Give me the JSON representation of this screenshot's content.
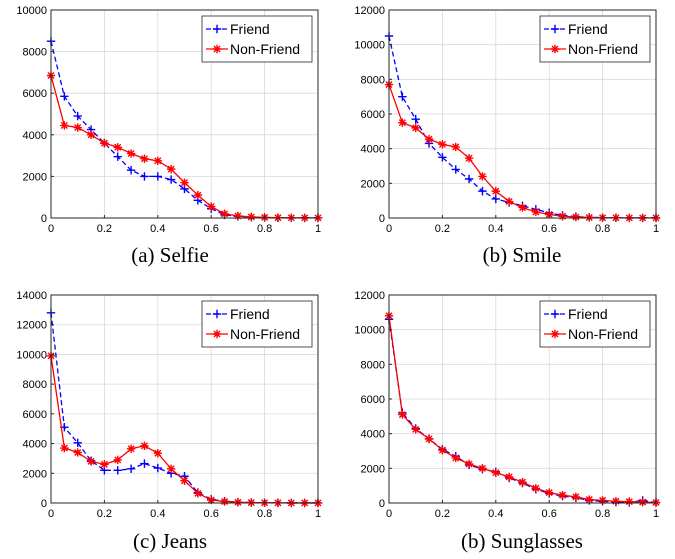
{
  "chart_data": [
    {
      "type": "line",
      "caption": "(a) Selfie",
      "xlim": [
        0,
        1
      ],
      "ylim": [
        0,
        10000
      ],
      "xticks": [
        0,
        0.2,
        0.4,
        0.6,
        0.8,
        1
      ],
      "xtick_labels": [
        "0",
        "0.2",
        "0.4",
        "0.6",
        "0.8",
        "1"
      ],
      "yticks": [
        0,
        2000,
        4000,
        6000,
        8000,
        10000
      ],
      "ytick_labels": [
        "0",
        "2000",
        "4000",
        "6000",
        "8000",
        "10000"
      ],
      "x": [
        0,
        0.05,
        0.1,
        0.15,
        0.2,
        0.25,
        0.3,
        0.35,
        0.4,
        0.45,
        0.5,
        0.55,
        0.6,
        0.65,
        0.7,
        0.75,
        0.8,
        0.85,
        0.9,
        0.95,
        1
      ],
      "legend_position": "top-right",
      "series": [
        {
          "name": "Friend",
          "color": "#0000ff",
          "line": "dashed",
          "marker": "plus",
          "values": [
            8500,
            5850,
            4900,
            4250,
            3600,
            2950,
            2300,
            2000,
            2000,
            1850,
            1400,
            850,
            450,
            150,
            80,
            40,
            20,
            10,
            5,
            5,
            5
          ]
        },
        {
          "name": "Non-Friend",
          "color": "#ff0000",
          "line": "solid",
          "marker": "asterisk",
          "values": [
            6850,
            4450,
            4350,
            4000,
            3600,
            3400,
            3100,
            2850,
            2750,
            2350,
            1700,
            1100,
            550,
            200,
            100,
            50,
            30,
            15,
            10,
            5,
            5
          ]
        }
      ]
    },
    {
      "type": "line",
      "caption": "(b) Smile",
      "xlim": [
        0,
        1
      ],
      "ylim": [
        0,
        12000
      ],
      "xticks": [
        0,
        0.2,
        0.4,
        0.6,
        0.8,
        1
      ],
      "xtick_labels": [
        "0",
        "0.2",
        "0.4",
        "0.6",
        "0.8",
        "1"
      ],
      "yticks": [
        0,
        2000,
        4000,
        6000,
        8000,
        10000,
        12000
      ],
      "ytick_labels": [
        "0",
        "2000",
        "4000",
        "6000",
        "8000",
        "10000",
        "12000"
      ],
      "x": [
        0,
        0.05,
        0.1,
        0.15,
        0.2,
        0.25,
        0.3,
        0.35,
        0.4,
        0.45,
        0.5,
        0.55,
        0.6,
        0.65,
        0.7,
        0.75,
        0.8,
        0.85,
        0.9,
        0.95,
        1
      ],
      "legend_position": "top-right",
      "series": [
        {
          "name": "Friend",
          "color": "#0000ff",
          "line": "dashed",
          "marker": "plus",
          "values": [
            10500,
            7000,
            5700,
            4300,
            3500,
            2800,
            2250,
            1550,
            1100,
            900,
            700,
            500,
            300,
            150,
            80,
            40,
            20,
            10,
            5,
            5,
            5
          ]
        },
        {
          "name": "Non-Friend",
          "color": "#ff0000",
          "line": "solid",
          "marker": "asterisk",
          "values": [
            7700,
            5500,
            5200,
            4550,
            4250,
            4100,
            3450,
            2400,
            1550,
            950,
            600,
            350,
            200,
            100,
            60,
            30,
            15,
            10,
            5,
            5,
            5
          ]
        }
      ]
    },
    {
      "type": "line",
      "caption": "(c) Jeans",
      "xlim": [
        0,
        1
      ],
      "ylim": [
        0,
        14000
      ],
      "xticks": [
        0,
        0.2,
        0.4,
        0.6,
        0.8,
        1
      ],
      "xtick_labels": [
        "0",
        "0.2",
        "0.4",
        "0.6",
        "0.8",
        "1"
      ],
      "yticks": [
        0,
        2000,
        4000,
        6000,
        8000,
        10000,
        12000,
        14000
      ],
      "ytick_labels": [
        "0",
        "2000",
        "4000",
        "6000",
        "8000",
        "10000",
        "12000",
        "14000"
      ],
      "x": [
        0,
        0.05,
        0.1,
        0.15,
        0.2,
        0.25,
        0.3,
        0.35,
        0.4,
        0.45,
        0.5,
        0.55,
        0.6,
        0.65,
        0.7,
        0.75,
        0.8,
        0.85,
        0.9,
        0.95,
        1
      ],
      "legend_position": "top-right",
      "series": [
        {
          "name": "Friend",
          "color": "#0000ff",
          "line": "dashed",
          "marker": "plus",
          "values": [
            12800,
            5100,
            4050,
            2850,
            2200,
            2200,
            2300,
            2650,
            2350,
            2000,
            1800,
            700,
            250,
            120,
            60,
            30,
            15,
            10,
            5,
            5,
            5
          ]
        },
        {
          "name": "Non-Friend",
          "color": "#ff0000",
          "line": "solid",
          "marker": "asterisk",
          "values": [
            9900,
            3700,
            3400,
            2800,
            2600,
            2900,
            3650,
            3850,
            3350,
            2300,
            1500,
            650,
            200,
            100,
            50,
            30,
            15,
            10,
            5,
            5,
            5
          ]
        }
      ]
    },
    {
      "type": "line",
      "caption": "(b) Sunglasses",
      "xlim": [
        0,
        1
      ],
      "ylim": [
        0,
        12000
      ],
      "xticks": [
        0,
        0.2,
        0.4,
        0.6,
        0.8,
        1
      ],
      "xtick_labels": [
        "0",
        "0.2",
        "0.4",
        "0.6",
        "0.8",
        "1"
      ],
      "yticks": [
        0,
        2000,
        4000,
        6000,
        8000,
        10000,
        12000
      ],
      "ytick_labels": [
        "0",
        "2000",
        "4000",
        "6000",
        "8000",
        "10000",
        "12000"
      ],
      "x": [
        0,
        0.05,
        0.1,
        0.15,
        0.2,
        0.25,
        0.3,
        0.35,
        0.4,
        0.45,
        0.5,
        0.55,
        0.6,
        0.65,
        0.7,
        0.75,
        0.8,
        0.85,
        0.9,
        0.95,
        1
      ],
      "legend_position": "top-right",
      "series": [
        {
          "name": "Friend",
          "color": "#0000ff",
          "line": "dashed",
          "marker": "plus",
          "values": [
            10600,
            5200,
            4300,
            3700,
            3100,
            2700,
            2200,
            1950,
            1800,
            1450,
            1150,
            800,
            550,
            400,
            300,
            150,
            100,
            50,
            30,
            150,
            20
          ]
        },
        {
          "name": "Non-Friend",
          "color": "#ff0000",
          "line": "solid",
          "marker": "asterisk",
          "values": [
            10800,
            5100,
            4250,
            3700,
            3050,
            2600,
            2250,
            2000,
            1750,
            1500,
            1200,
            850,
            600,
            450,
            350,
            200,
            150,
            100,
            80,
            50,
            30
          ]
        }
      ]
    }
  ]
}
